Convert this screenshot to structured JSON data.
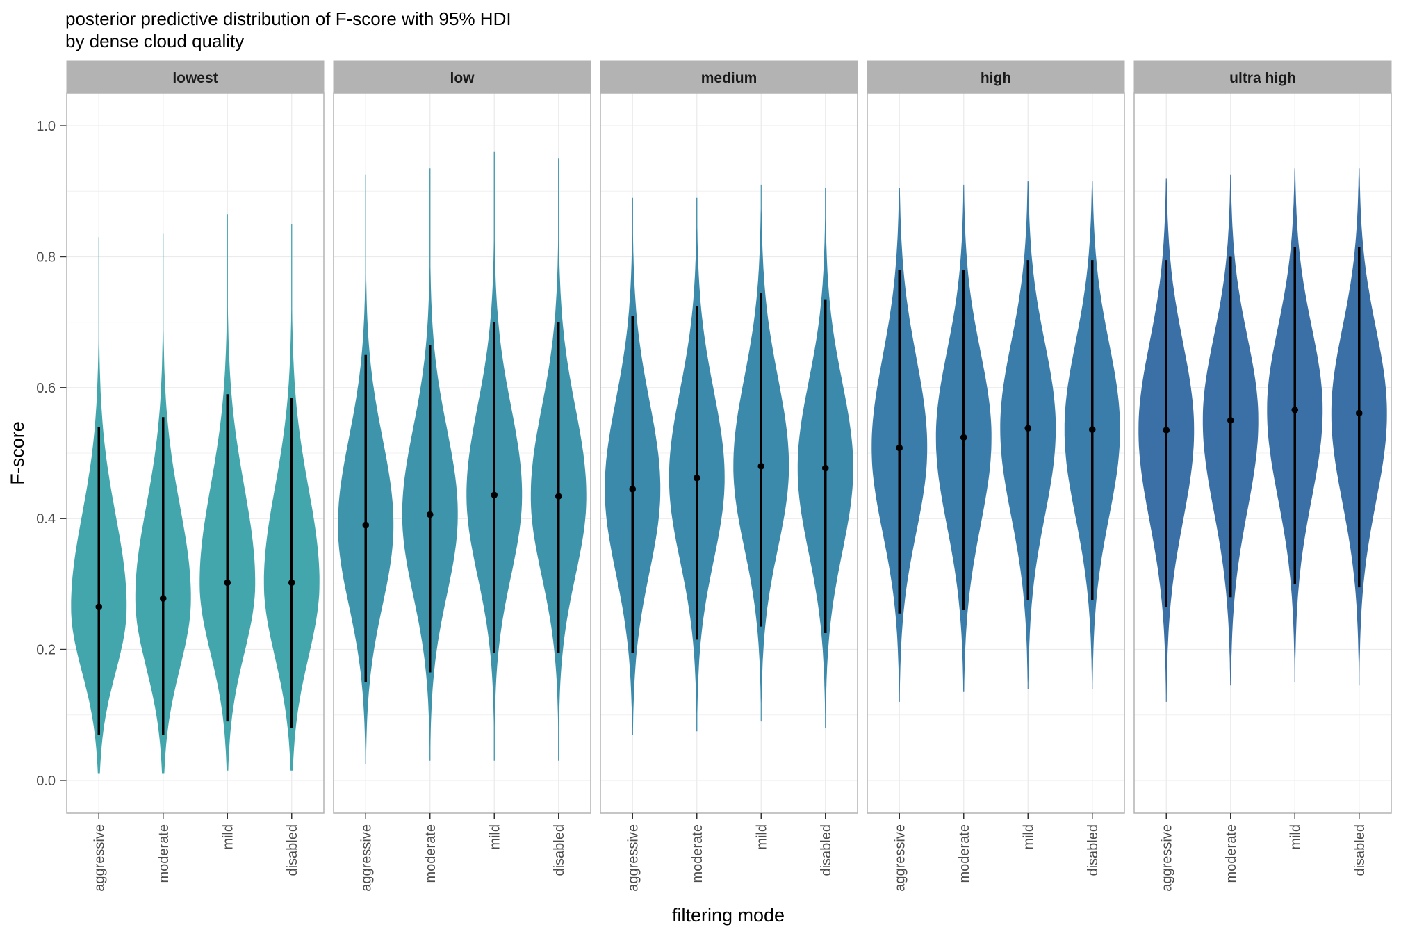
{
  "chart_data": {
    "type": "violin",
    "title_lines": [
      "posterior predictive distribution of F-score with 95% HDI",
      "by dense cloud quality"
    ],
    "xlabel": "filtering mode",
    "ylabel": "F-score",
    "ylim": [
      -0.05,
      1.05
    ],
    "yticks": [
      0.0,
      0.2,
      0.4,
      0.6,
      0.8,
      1.0
    ],
    "ytick_labels": [
      "0.0",
      "0.2",
      "0.4",
      "0.6",
      "0.8",
      "1.0"
    ],
    "categories": [
      "aggressive",
      "moderate",
      "mild",
      "disabled"
    ],
    "grid": true,
    "facet_by": "dense cloud quality",
    "panels": [
      {
        "name": "lowest",
        "color": "#43A6AD",
        "groups": [
          {
            "category": "aggressive",
            "median": 0.265,
            "hdi": [
              0.07,
              0.54
            ],
            "range": [
              0.01,
              0.83
            ]
          },
          {
            "category": "moderate",
            "median": 0.278,
            "hdi": [
              0.07,
              0.555
            ],
            "range": [
              0.01,
              0.835
            ]
          },
          {
            "category": "mild",
            "median": 0.302,
            "hdi": [
              0.09,
              0.59
            ],
            "range": [
              0.015,
              0.865
            ]
          },
          {
            "category": "disabled",
            "median": 0.302,
            "hdi": [
              0.08,
              0.585
            ],
            "range": [
              0.015,
              0.85
            ]
          }
        ]
      },
      {
        "name": "low",
        "color": "#3E95AB",
        "groups": [
          {
            "category": "aggressive",
            "median": 0.39,
            "hdi": [
              0.15,
              0.65
            ],
            "range": [
              0.025,
              0.925
            ]
          },
          {
            "category": "moderate",
            "median": 0.406,
            "hdi": [
              0.165,
              0.665
            ],
            "range": [
              0.03,
              0.935
            ]
          },
          {
            "category": "mild",
            "median": 0.436,
            "hdi": [
              0.195,
              0.7
            ],
            "range": [
              0.03,
              0.96
            ]
          },
          {
            "category": "disabled",
            "median": 0.434,
            "hdi": [
              0.195,
              0.7
            ],
            "range": [
              0.03,
              0.95
            ]
          }
        ]
      },
      {
        "name": "medium",
        "color": "#3B89AB",
        "groups": [
          {
            "category": "aggressive",
            "median": 0.445,
            "hdi": [
              0.195,
              0.71
            ],
            "range": [
              0.07,
              0.89
            ]
          },
          {
            "category": "moderate",
            "median": 0.462,
            "hdi": [
              0.215,
              0.725
            ],
            "range": [
              0.075,
              0.89
            ]
          },
          {
            "category": "mild",
            "median": 0.48,
            "hdi": [
              0.235,
              0.745
            ],
            "range": [
              0.09,
              0.91
            ]
          },
          {
            "category": "disabled",
            "median": 0.477,
            "hdi": [
              0.225,
              0.735
            ],
            "range": [
              0.08,
              0.905
            ]
          }
        ]
      },
      {
        "name": "high",
        "color": "#3A7DAB",
        "groups": [
          {
            "category": "aggressive",
            "median": 0.508,
            "hdi": [
              0.255,
              0.78
            ],
            "range": [
              0.12,
              0.905
            ]
          },
          {
            "category": "moderate",
            "median": 0.524,
            "hdi": [
              0.26,
              0.78
            ],
            "range": [
              0.135,
              0.91
            ]
          },
          {
            "category": "mild",
            "median": 0.538,
            "hdi": [
              0.275,
              0.795
            ],
            "range": [
              0.14,
              0.915
            ]
          },
          {
            "category": "disabled",
            "median": 0.536,
            "hdi": [
              0.275,
              0.795
            ],
            "range": [
              0.14,
              0.915
            ]
          }
        ]
      },
      {
        "name": "ultra high",
        "color": "#3A70A5",
        "groups": [
          {
            "category": "aggressive",
            "median": 0.535,
            "hdi": [
              0.265,
              0.795
            ],
            "range": [
              0.12,
              0.92
            ]
          },
          {
            "category": "moderate",
            "median": 0.55,
            "hdi": [
              0.28,
              0.8
            ],
            "range": [
              0.145,
              0.925
            ]
          },
          {
            "category": "mild",
            "median": 0.566,
            "hdi": [
              0.3,
              0.815
            ],
            "range": [
              0.15,
              0.935
            ]
          },
          {
            "category": "disabled",
            "median": 0.561,
            "hdi": [
              0.295,
              0.815
            ],
            "range": [
              0.145,
              0.935
            ]
          }
        ]
      }
    ]
  }
}
